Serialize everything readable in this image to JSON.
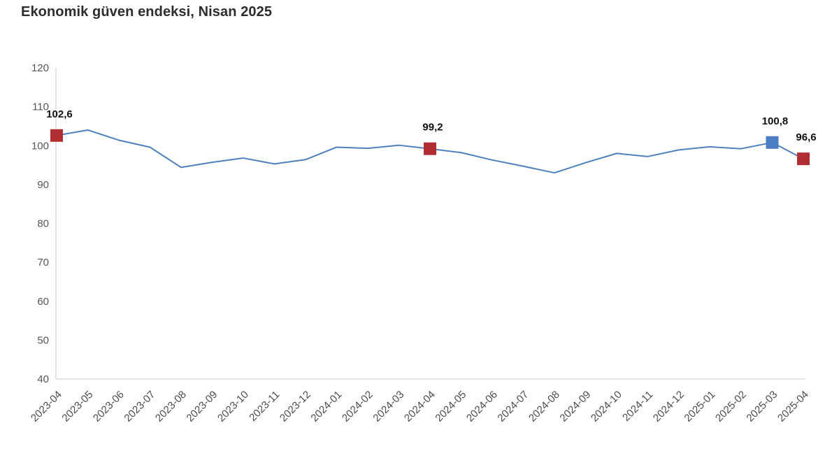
{
  "title": "Ekonomik güven endeksi, Nisan 2025",
  "chart_data": {
    "type": "line",
    "title": "Ekonomik güven endeksi, Nisan 2025",
    "x": [
      "2023-04",
      "2023-05",
      "2023-06",
      "2023-07",
      "2023-08",
      "2023-09",
      "2023-10",
      "2023-11",
      "2023-12",
      "2024-01",
      "2024-02",
      "2024-03",
      "2024-04",
      "2024-05",
      "2024-06",
      "2024-07",
      "2024-08",
      "2024-09",
      "2024-10",
      "2024-11",
      "2024-12",
      "2025-01",
      "2025-02",
      "2025-03",
      "2025-04"
    ],
    "series": [
      {
        "name": "Ekonomik güven endeksi",
        "values": [
          102.6,
          104.0,
          101.4,
          99.6,
          94.4,
          95.7,
          96.8,
          95.3,
          96.4,
          99.6,
          99.3,
          100.1,
          99.2,
          98.2,
          96.3,
          94.7,
          93.0,
          95.6,
          98.0,
          97.2,
          98.9,
          99.7,
          99.2,
          100.8,
          96.6
        ]
      }
    ],
    "ylim": [
      40,
      120
    ],
    "yticks": [
      40,
      50,
      60,
      70,
      80,
      90,
      100,
      110,
      120
    ],
    "grid": false,
    "legend_position": "none",
    "decimal_separator": ",",
    "colors": {
      "line": "#4e80bd",
      "marker_red": "#b02e31",
      "marker_blue": "#4a7dc3",
      "axis_line": "#dcdcdc",
      "tick_label": "#555555",
      "point_label": "#101010"
    },
    "annotated_points": [
      {
        "x": "2023-04",
        "value": 102.6,
        "label": "102,6",
        "marker_color": "#b02e31"
      },
      {
        "x": "2024-04",
        "value": 99.2,
        "label": "99,2",
        "marker_color": "#b02e31"
      },
      {
        "x": "2025-03",
        "value": 100.8,
        "label": "100,8",
        "marker_color": "#4a7dc3"
      },
      {
        "x": "2025-04",
        "value": 96.6,
        "label": "96,6",
        "marker_color": "#b02e31"
      }
    ]
  }
}
